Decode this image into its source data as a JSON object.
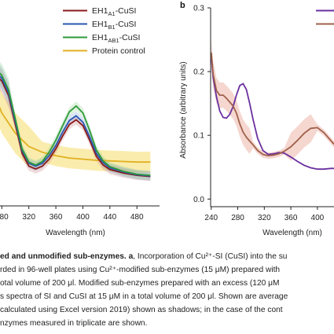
{
  "chart_data": [
    {
      "panel": "a",
      "type": "line",
      "xlabel": "Wavelength (nm)",
      "ylabel": "",
      "xlim": [
        268,
        510
      ],
      "ylim": [
        -0.02,
        0.32
      ],
      "xticks": [
        "280",
        "320",
        "360",
        "400",
        "440",
        "480"
      ],
      "grid": false,
      "legend_position": "top",
      "series": [
        {
          "name": "EH1A1-CuSI",
          "legend_main": "EH1",
          "legend_sub": "A1",
          "legend_suffix": "-CuSI",
          "color": "#8b1a1a",
          "x": [
            268,
            280,
            290,
            300,
            310,
            320,
            330,
            340,
            350,
            360,
            370,
            380,
            390,
            400,
            410,
            420,
            430,
            440,
            460,
            480,
            500
          ],
          "y": [
            0.2,
            0.185,
            0.16,
            0.11,
            0.06,
            0.038,
            0.033,
            0.038,
            0.05,
            0.068,
            0.09,
            0.11,
            0.118,
            0.108,
            0.083,
            0.055,
            0.04,
            0.032,
            0.026,
            0.022,
            0.02
          ]
        },
        {
          "name": "EH1B1-CuSI",
          "legend_main": "EH1",
          "legend_sub": "B1",
          "legend_suffix": "-CuSI",
          "color": "#2a56b0",
          "x": [
            268,
            280,
            290,
            300,
            310,
            320,
            330,
            340,
            350,
            360,
            370,
            380,
            390,
            400,
            410,
            420,
            430,
            440,
            460,
            480,
            500
          ],
          "y": [
            0.205,
            0.19,
            0.165,
            0.115,
            0.065,
            0.043,
            0.038,
            0.043,
            0.056,
            0.074,
            0.097,
            0.117,
            0.125,
            0.114,
            0.089,
            0.06,
            0.044,
            0.035,
            0.028,
            0.023,
            0.021
          ]
        },
        {
          "name": "EH1AB1-CuSI",
          "legend_main": "EH1",
          "legend_sub": "AB1",
          "legend_suffix": "-CuSI",
          "color": "#2e9a3a",
          "x": [
            268,
            280,
            290,
            300,
            310,
            320,
            330,
            340,
            350,
            360,
            370,
            380,
            390,
            400,
            410,
            420,
            430,
            440,
            460,
            480,
            500
          ],
          "y": [
            0.21,
            0.195,
            0.17,
            0.12,
            0.068,
            0.045,
            0.04,
            0.046,
            0.062,
            0.083,
            0.108,
            0.132,
            0.142,
            0.13,
            0.1,
            0.066,
            0.047,
            0.037,
            0.029,
            0.024,
            0.022
          ]
        },
        {
          "name": "Protein control",
          "legend_main": "Protein control",
          "legend_sub": "",
          "legend_suffix": "",
          "color": "#e0b020",
          "x": [
            268,
            280,
            300,
            320,
            340,
            360,
            380,
            400,
            420,
            440,
            460,
            480,
            500
          ],
          "y": [
            0.165,
            0.13,
            0.095,
            0.072,
            0.062,
            0.056,
            0.052,
            0.05,
            0.048,
            0.047,
            0.046,
            0.045,
            0.045
          ]
        }
      ]
    },
    {
      "panel": "b",
      "type": "line",
      "xlabel": "Wavelength (nm)",
      "ylabel": "Absorbance (arbitrary units)",
      "xlim": [
        232,
        425
      ],
      "ylim": [
        -0.012,
        0.3
      ],
      "xticks": [
        "240",
        "280",
        "320",
        "360",
        "400"
      ],
      "yticks": [
        "0.0",
        "0.1",
        "0.2",
        "0.3"
      ],
      "grid": false,
      "legend_position": "top-right",
      "series": [
        {
          "name": "",
          "color": "#6a2fa0",
          "x": [
            240,
            243,
            248,
            253,
            258,
            263,
            268,
            273,
            278,
            283,
            288,
            293,
            298,
            303,
            310,
            318,
            326,
            334,
            342,
            350,
            360,
            370,
            380,
            390,
            400,
            410,
            420,
            425
          ],
          "y": [
            0.225,
            0.19,
            0.16,
            0.138,
            0.128,
            0.127,
            0.133,
            0.145,
            0.163,
            0.178,
            0.181,
            0.172,
            0.15,
            0.125,
            0.095,
            0.076,
            0.07,
            0.071,
            0.073,
            0.072,
            0.066,
            0.059,
            0.053,
            0.049,
            0.047,
            0.047,
            0.048,
            0.048
          ]
        },
        {
          "name": "",
          "color": "#a0604a",
          "x": [
            240,
            243,
            248,
            253,
            258,
            263,
            268,
            273,
            278,
            283,
            288,
            293,
            298,
            303,
            310,
            318,
            326,
            334,
            342,
            350,
            360,
            370,
            380,
            390,
            400,
            410,
            420,
            425
          ],
          "y": [
            0.23,
            0.195,
            0.17,
            0.163,
            0.163,
            0.158,
            0.152,
            0.146,
            0.135,
            0.118,
            0.105,
            0.097,
            0.091,
            0.085,
            0.076,
            0.07,
            0.068,
            0.069,
            0.071,
            0.075,
            0.082,
            0.092,
            0.103,
            0.111,
            0.112,
            0.104,
            0.092,
            0.086
          ]
        }
      ]
    }
  ],
  "caption": {
    "lines": [
      {
        "bold": "ed and unmodified sub-enzymes. a",
        "text": ", Incorporation of Cu²⁺-SI (CuSI) into the su"
      },
      {
        "bold": "",
        "text": "rded in 96-well plates using Cu²⁺-modified sub-enzymes (15 μM) prepared with"
      },
      {
        "bold": "",
        "text": "otal volume of 200 μl. Modified sub-enzymes prepared with an excess (120 μM"
      },
      {
        "bold": "",
        "text": "s spectra of SI and CuSI at 15 μM in a total volume of 200 μl. Shown are average"
      },
      {
        "bold": "",
        "text": "calculated using Excel version 2019) shown as shadows; in the case of the cont"
      },
      {
        "bold": "",
        "text": "nzymes measured in triplicate are shown."
      }
    ]
  }
}
